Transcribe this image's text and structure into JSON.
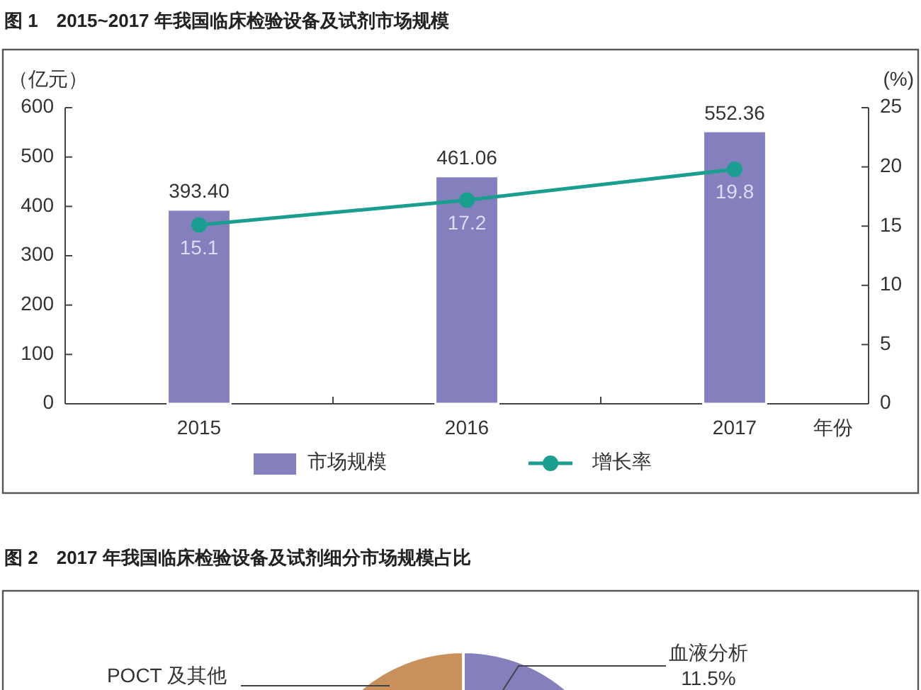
{
  "chart_data": [
    {
      "type": "bar",
      "title": "图 1　2015~2017 年我国临床检验设备及试剂市场规模",
      "ylabel": "（亿元）",
      "y2label": "(%)",
      "xlabel": "年份",
      "categories": [
        "2015",
        "2016",
        "2017"
      ],
      "series": [
        {
          "name": "市场规模",
          "type": "bar",
          "color": "#8480bd",
          "values": [
            393.4,
            461.06,
            552.36
          ],
          "value_labels": [
            "393.40",
            "461.06",
            "552.36"
          ]
        },
        {
          "name": "增长率",
          "type": "line",
          "axis": "y2",
          "color": "#1a9e8f",
          "marker": "circle",
          "values": [
            15.1,
            17.2,
            19.8
          ],
          "value_labels": [
            "15.1",
            "17.2",
            "19.8"
          ]
        }
      ],
      "ylim": [
        0,
        600
      ],
      "yticks": [
        0,
        100,
        200,
        300,
        400,
        500,
        600
      ],
      "y2lim": [
        0,
        25
      ],
      "y2ticks": [
        0,
        5,
        10,
        15,
        20,
        25
      ],
      "legend": "bottom"
    },
    {
      "type": "other",
      "title": "图 2　2017 年我国临床检验设备及试剂细分市场规模占比",
      "annotations": [
        "POCT 及其他",
        "血液分析",
        "11.5%"
      ]
    }
  ]
}
